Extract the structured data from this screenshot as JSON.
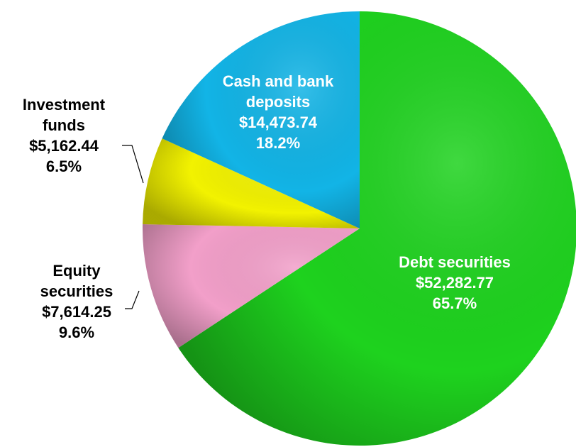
{
  "chart_data": {
    "type": "pie",
    "categories": [
      "Debt securities",
      "Equity securities",
      "Investment funds",
      "Cash and bank deposits"
    ],
    "values": [
      52282.77,
      7614.25,
      5162.44,
      14473.74
    ],
    "value_labels": [
      "$52,282.77",
      "$7,614.25",
      "$5,162.44",
      "$14,473.74"
    ],
    "percent_labels": [
      "65.7%",
      "9.6%",
      "6.5%",
      "18.2%"
    ],
    "colors": [
      "#1ed21e",
      "#f29fc9",
      "#f2f200",
      "#12b4e6"
    ]
  }
}
